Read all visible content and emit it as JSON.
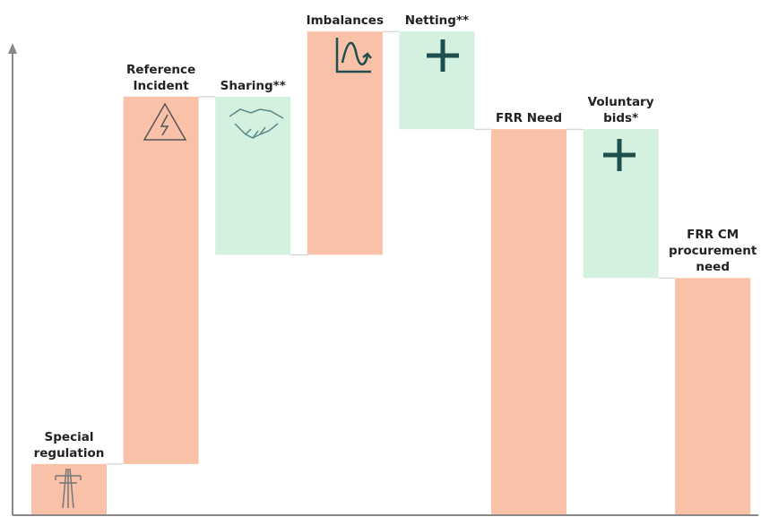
{
  "chart_data": {
    "type": "waterfall",
    "categories": [
      "Special regulation",
      "Reference Incident",
      "Sharing**",
      "Imbalances",
      "Netting**",
      "FRR Need",
      "Voluntary bids*",
      "FRR CM procurement need"
    ],
    "values": [
      11,
      79,
      -34,
      48,
      -21,
      83,
      -32,
      51
    ],
    "measures": [
      "absolute",
      "relative",
      "relative",
      "relative",
      "relative",
      "total",
      "relative",
      "total"
    ],
    "increase_color": "#f9c1a8",
    "decrease_color": "#d4f0de",
    "total_color": "#f9c1a8",
    "ylim": [
      0,
      105
    ]
  }
}
